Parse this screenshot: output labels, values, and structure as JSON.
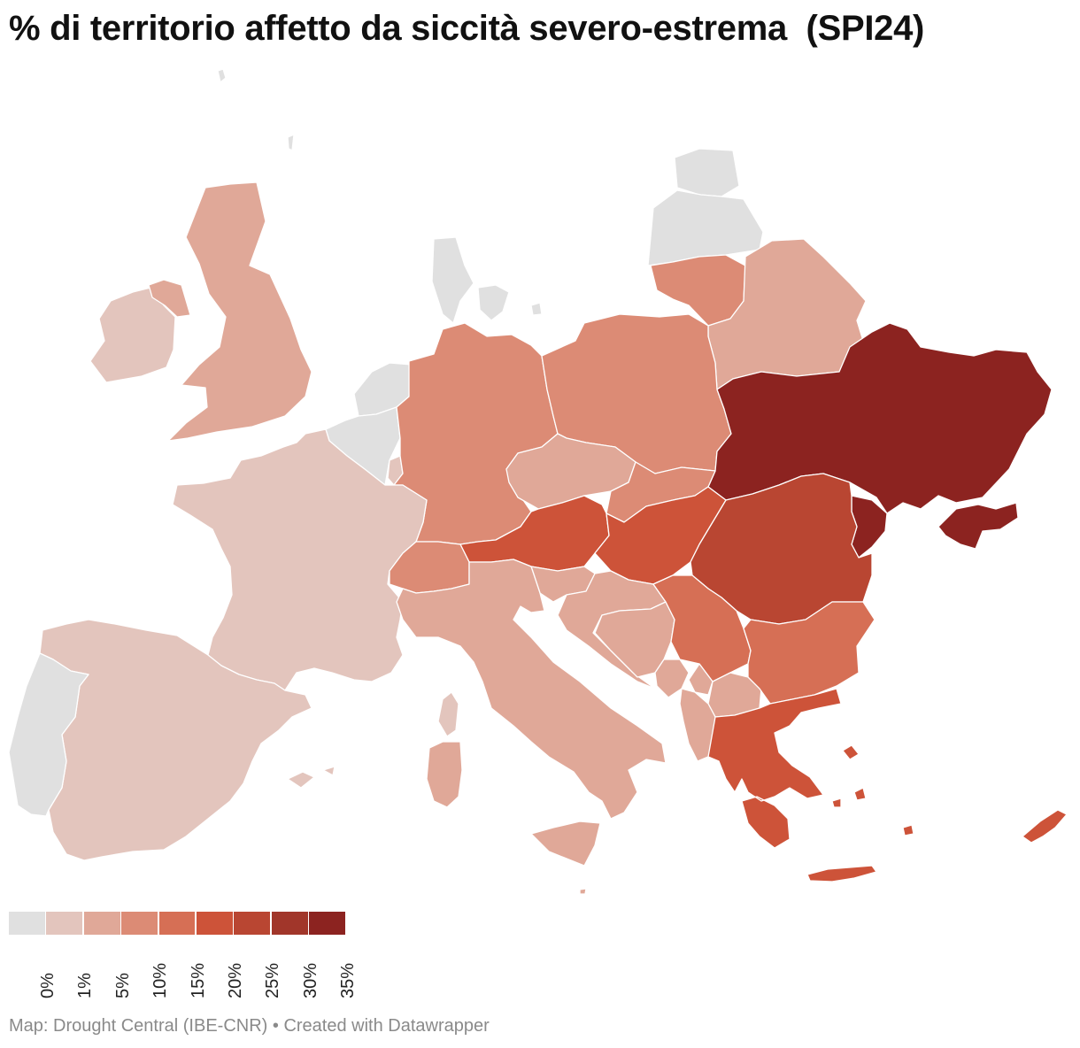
{
  "title": "% di territorio affetto da siccità severo-estrema  (SPI24)",
  "legend": {
    "colors": [
      "#e0e0e0",
      "#e3c5bd",
      "#e0a898",
      "#dc8b75",
      "#d66f55",
      "#cd5339",
      "#b94632",
      "#a1362a",
      "#8c2320"
    ],
    "ticks": [
      "0%",
      "1%",
      "5%",
      "10%",
      "15%",
      "20%",
      "25%",
      "30%",
      "35%"
    ]
  },
  "footer": {
    "source": "Map: Drought Central (IBE-CNR)",
    "separator": " • ",
    "credit": "Created with Datawrapper"
  },
  "countries": [
    {
      "name": "Iceland",
      "color": "#e0e0e0"
    },
    {
      "name": "Faroe",
      "color": "#e0e0e0"
    },
    {
      "name": "Ireland",
      "color": "#e3c5bd"
    },
    {
      "name": "United Kingdom",
      "color": "#e0a898"
    },
    {
      "name": "Norway",
      "color": "#e0e0e0"
    },
    {
      "name": "Denmark",
      "color": "#e0e0e0"
    },
    {
      "name": "Estonia",
      "color": "#e0e0e0"
    },
    {
      "name": "Latvia",
      "color": "#e0e0e0"
    },
    {
      "name": "Lithuania",
      "color": "#dc8b75"
    },
    {
      "name": "Belarus",
      "color": "#e0a898"
    },
    {
      "name": "Netherlands",
      "color": "#e0e0e0"
    },
    {
      "name": "Belgium",
      "color": "#e0e0e0"
    },
    {
      "name": "Luxembourg",
      "color": "#e3c5bd"
    },
    {
      "name": "Germany",
      "color": "#dc8b75"
    },
    {
      "name": "Poland",
      "color": "#dc8b75"
    },
    {
      "name": "Ukraine",
      "color": "#8c2320"
    },
    {
      "name": "Moldova",
      "color": "#8c2320"
    },
    {
      "name": "France",
      "color": "#e3c5bd"
    },
    {
      "name": "Czechia",
      "color": "#e0a898"
    },
    {
      "name": "Slovakia",
      "color": "#dc8b75"
    },
    {
      "name": "Austria",
      "color": "#cd5339"
    },
    {
      "name": "Switzerland",
      "color": "#dc8b75"
    },
    {
      "name": "Hungary",
      "color": "#cd5339"
    },
    {
      "name": "Romania",
      "color": "#b94632"
    },
    {
      "name": "Slovenia",
      "color": "#e0a898"
    },
    {
      "name": "Croatia",
      "color": "#e0a898"
    },
    {
      "name": "Bosnia and Herzegovina",
      "color": "#e0a898"
    },
    {
      "name": "Serbia",
      "color": "#d66f55"
    },
    {
      "name": "Montenegro",
      "color": "#e0a898"
    },
    {
      "name": "Kosovo",
      "color": "#e0a898"
    },
    {
      "name": "North Macedonia",
      "color": "#e0a898"
    },
    {
      "name": "Albania",
      "color": "#e0a898"
    },
    {
      "name": "Bulgaria",
      "color": "#d66f55"
    },
    {
      "name": "Greece",
      "color": "#cd5339"
    },
    {
      "name": "Cyprus",
      "color": "#cd5339"
    },
    {
      "name": "Italy",
      "color": "#e0a898"
    },
    {
      "name": "Sardinia",
      "color": "#e0a898"
    },
    {
      "name": "Corsica",
      "color": "#e3c5bd"
    },
    {
      "name": "Sicily",
      "color": "#e0a898"
    },
    {
      "name": "Spain",
      "color": "#e3c5bd"
    },
    {
      "name": "Balearic Islands",
      "color": "#e3c5bd"
    },
    {
      "name": "Portugal",
      "color": "#e0e0e0"
    },
    {
      "name": "Malta",
      "color": "#e0a898"
    },
    {
      "name": "Crete",
      "color": "#cd5339"
    },
    {
      "name": "Aegean Islands",
      "color": "#cd5339"
    }
  ]
}
